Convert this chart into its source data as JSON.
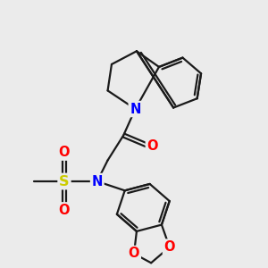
{
  "background_color": "#ebebeb",
  "bond_color": "#1a1a1a",
  "bond_width": 1.6,
  "atom_colors": {
    "N": "#0000ff",
    "O": "#ff0000",
    "S": "#cccc00",
    "C": "#1a1a1a"
  },
  "font_size_atom": 10.5
}
